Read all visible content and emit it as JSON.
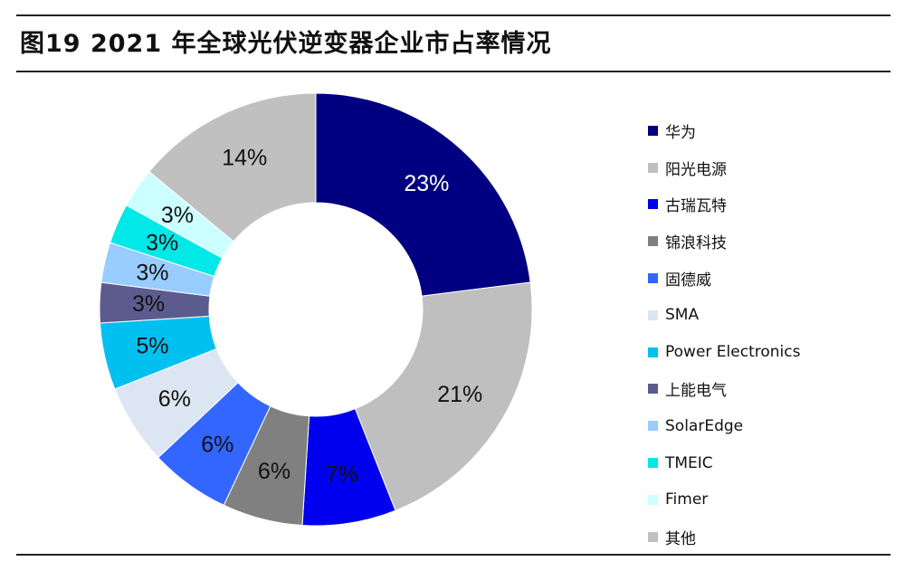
{
  "title": "图19 2021 年全球光伏逆变器企业市占率情况",
  "chart_data": {
    "type": "pie",
    "donut": true,
    "legend_position": "right",
    "categories": [
      "华为",
      "阳光电源",
      "古瑞瓦特",
      "锦浪科技",
      "固德威",
      "SMA",
      "Power Electronics",
      "上能电气",
      "SolarEdge",
      "TMEIC",
      "Fimer",
      "其他"
    ],
    "values": [
      23,
      21,
      7,
      6,
      6,
      6,
      5,
      3,
      3,
      3,
      3,
      14
    ],
    "value_labels": [
      "23%",
      "21%",
      "7%",
      "6%",
      "6%",
      "6%",
      "5%",
      "3%",
      "3%",
      "3%",
      "3%",
      "14%"
    ],
    "colors": [
      "#000080",
      "#BFBFBF",
      "#0000EE",
      "#808080",
      "#3366FF",
      "#DCE6F2",
      "#00C0F0",
      "#5B5B8E",
      "#99CCFF",
      "#00E8E8",
      "#CCFFFF",
      "#C0C0C0"
    ],
    "label_colors": [
      "#FFFFFF",
      "#111111",
      "#111111",
      "#111111",
      "#111111",
      "#111111",
      "#111111",
      "#111111",
      "#111111",
      "#111111",
      "#111111",
      "#111111"
    ]
  }
}
